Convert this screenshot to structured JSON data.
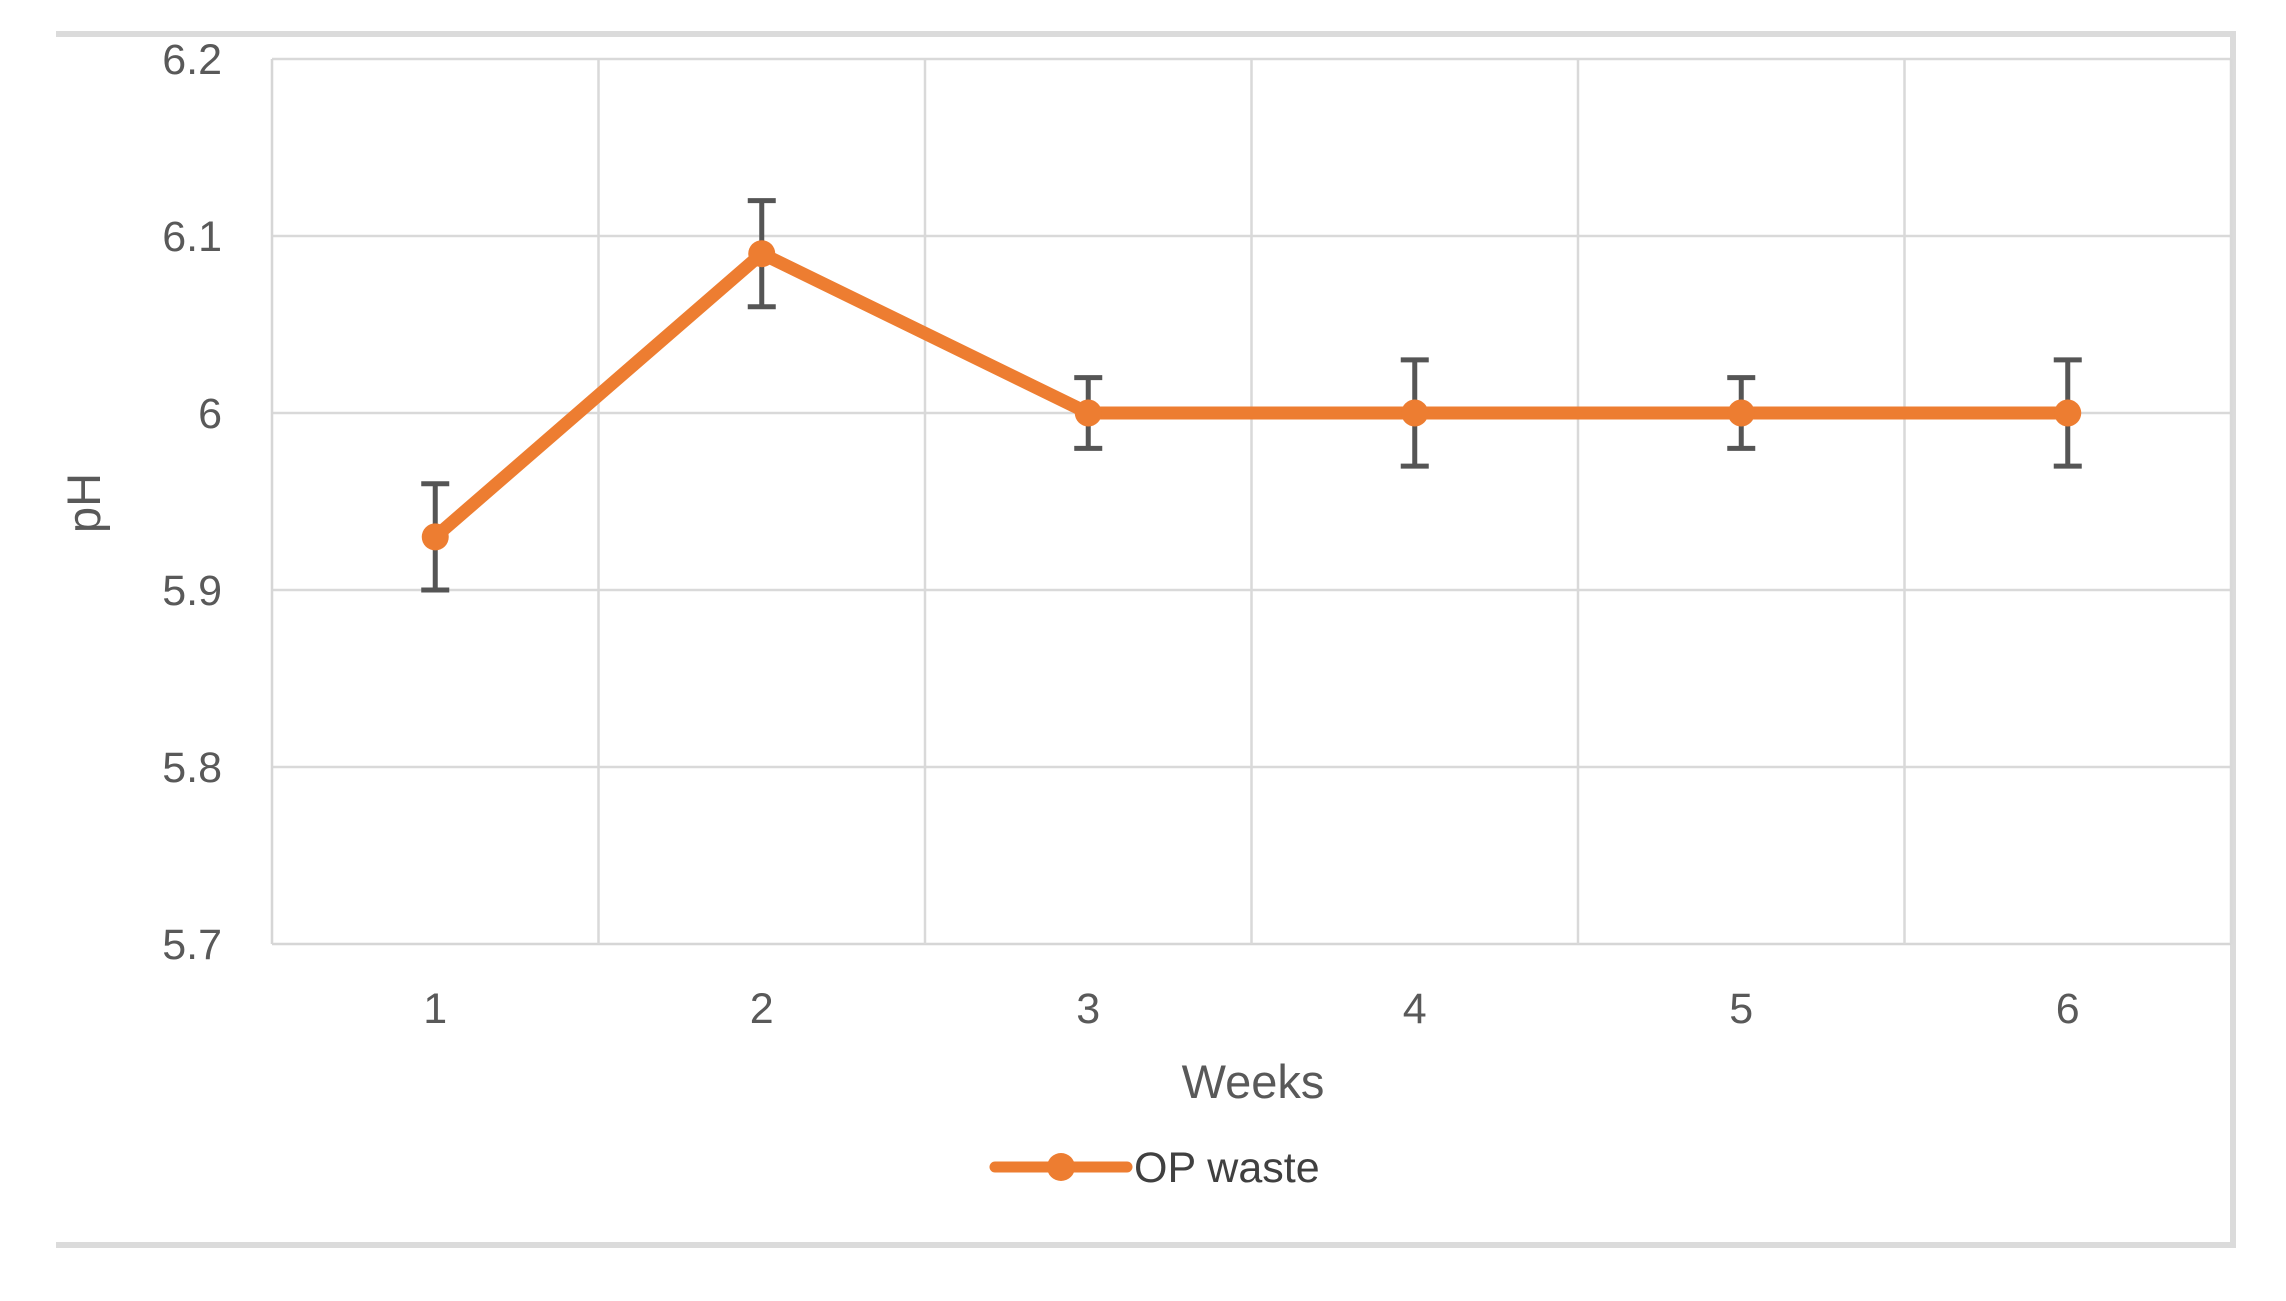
{
  "chart_data": {
    "type": "line",
    "title": "",
    "xlabel": "Weeks",
    "ylabel": "pH",
    "categories": [
      "1",
      "2",
      "3",
      "4",
      "5",
      "6"
    ],
    "series": [
      {
        "name": "OP waste",
        "values": [
          5.93,
          6.09,
          6.0,
          6.0,
          6.0,
          6.0
        ],
        "error_bars": [
          0.03,
          0.03,
          0.02,
          0.03,
          0.02,
          0.03
        ]
      }
    ],
    "ylim": [
      5.7,
      6.2
    ],
    "yticks": [
      5.7,
      5.8,
      5.9,
      6.0,
      6.1,
      6.2
    ],
    "ytick_labels": [
      "5.7",
      "5.8",
      "5.9",
      "6",
      "6.1",
      "6.2"
    ],
    "grid": "on",
    "legend_position": "bottom",
    "colors": {
      "series": "#ED7D31",
      "error_bar": "#555555",
      "gridline": "#D9D9D9",
      "axis_line": "#D6D6D6",
      "text": "#595959",
      "frame_border": "#DBDBDB",
      "background": "#FFFFFF"
    }
  }
}
